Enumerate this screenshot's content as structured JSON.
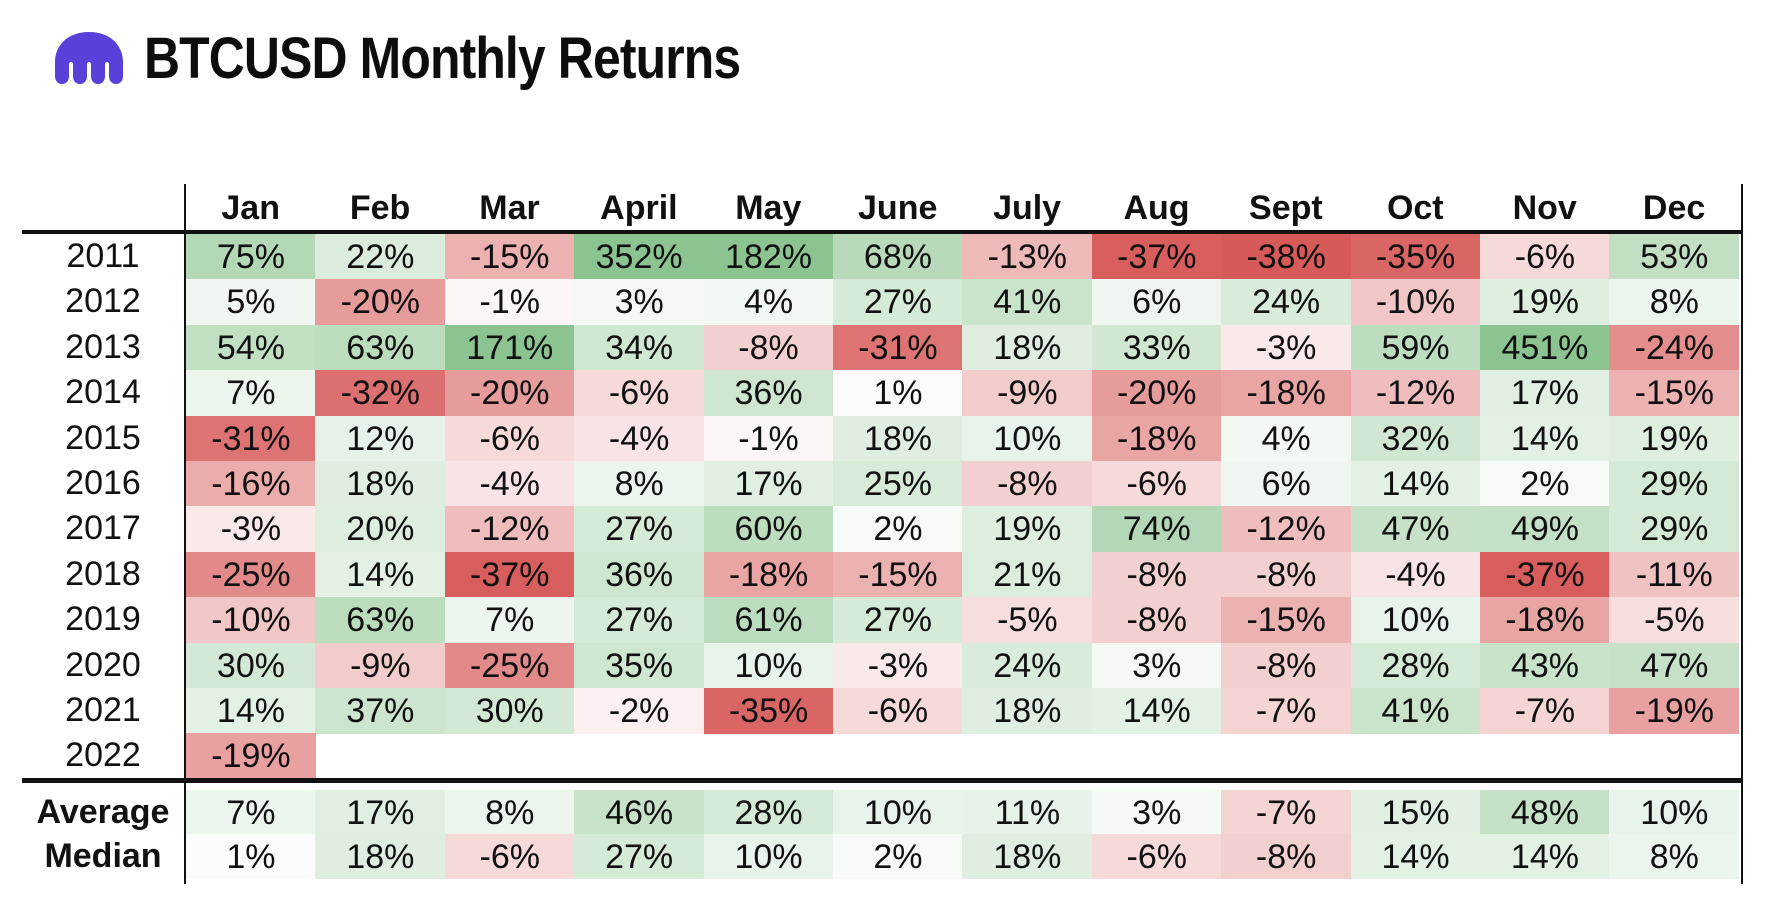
{
  "header": {
    "title": "BTCUSD Monthly Returns",
    "logo_icon": "kraken-logo-icon",
    "logo_color": "#5741d9"
  },
  "colors": {
    "positive_base": "#4c9f5b",
    "negative_base": "#d8494a"
  },
  "chart_data": {
    "type": "heatmap",
    "columns": [
      "Jan",
      "Feb",
      "Mar",
      "April",
      "May",
      "June",
      "July",
      "Aug",
      "Sept",
      "Oct",
      "Nov",
      "Dec"
    ],
    "rows": [
      {
        "year": "2011",
        "values": [
          "75%",
          "22%",
          "-15%",
          "352%",
          "182%",
          "68%",
          "-13%",
          "-37%",
          "-38%",
          "-35%",
          "-6%",
          "53%"
        ]
      },
      {
        "year": "2012",
        "values": [
          "5%",
          "-20%",
          "-1%",
          "3%",
          "4%",
          "27%",
          "41%",
          "6%",
          "24%",
          "-10%",
          "19%",
          "8%"
        ]
      },
      {
        "year": "2013",
        "values": [
          "54%",
          "63%",
          "171%",
          "34%",
          "-8%",
          "-31%",
          "18%",
          "33%",
          "-3%",
          "59%",
          "451%",
          "-24%"
        ]
      },
      {
        "year": "2014",
        "values": [
          "7%",
          "-32%",
          "-20%",
          "-6%",
          "36%",
          "1%",
          "-9%",
          "-20%",
          "-18%",
          "-12%",
          "17%",
          "-15%"
        ]
      },
      {
        "year": "2015",
        "values": [
          "-31%",
          "12%",
          "-6%",
          "-4%",
          "-1%",
          "18%",
          "10%",
          "-18%",
          "4%",
          "32%",
          "14%",
          "19%"
        ]
      },
      {
        "year": "2016",
        "values": [
          "-16%",
          "18%",
          "-4%",
          "8%",
          "17%",
          "25%",
          "-8%",
          "-6%",
          "6%",
          "14%",
          "2%",
          "29%"
        ]
      },
      {
        "year": "2017",
        "values": [
          "-3%",
          "20%",
          "-12%",
          "27%",
          "60%",
          "2%",
          "19%",
          "74%",
          "-12%",
          "47%",
          "49%",
          "29%"
        ]
      },
      {
        "year": "2018",
        "values": [
          "-25%",
          "14%",
          "-37%",
          "36%",
          "-18%",
          "-15%",
          "21%",
          "-8%",
          "-8%",
          "-4%",
          "-37%",
          "-11%"
        ]
      },
      {
        "year": "2019",
        "values": [
          "-10%",
          "63%",
          "7%",
          "27%",
          "61%",
          "27%",
          "-5%",
          "-8%",
          "-15%",
          "10%",
          "-18%",
          "-5%"
        ]
      },
      {
        "year": "2020",
        "values": [
          "30%",
          "-9%",
          "-25%",
          "35%",
          "10%",
          "-3%",
          "24%",
          "3%",
          "-8%",
          "28%",
          "43%",
          "47%"
        ]
      },
      {
        "year": "2021",
        "values": [
          "14%",
          "37%",
          "30%",
          "-2%",
          "-35%",
          "-6%",
          "18%",
          "14%",
          "-7%",
          "41%",
          "-7%",
          "-19%"
        ]
      },
      {
        "year": "2022",
        "values": [
          "-19%"
        ]
      }
    ],
    "summary": [
      {
        "label": "Average",
        "values": [
          "7%",
          "17%",
          "8%",
          "46%",
          "28%",
          "10%",
          "11%",
          "3%",
          "-7%",
          "15%",
          "48%",
          "10%"
        ]
      },
      {
        "label": "Median",
        "values": [
          "1%",
          "18%",
          "-6%",
          "27%",
          "10%",
          "2%",
          "18%",
          "-6%",
          "-8%",
          "14%",
          "14%",
          "8%"
        ]
      }
    ]
  }
}
